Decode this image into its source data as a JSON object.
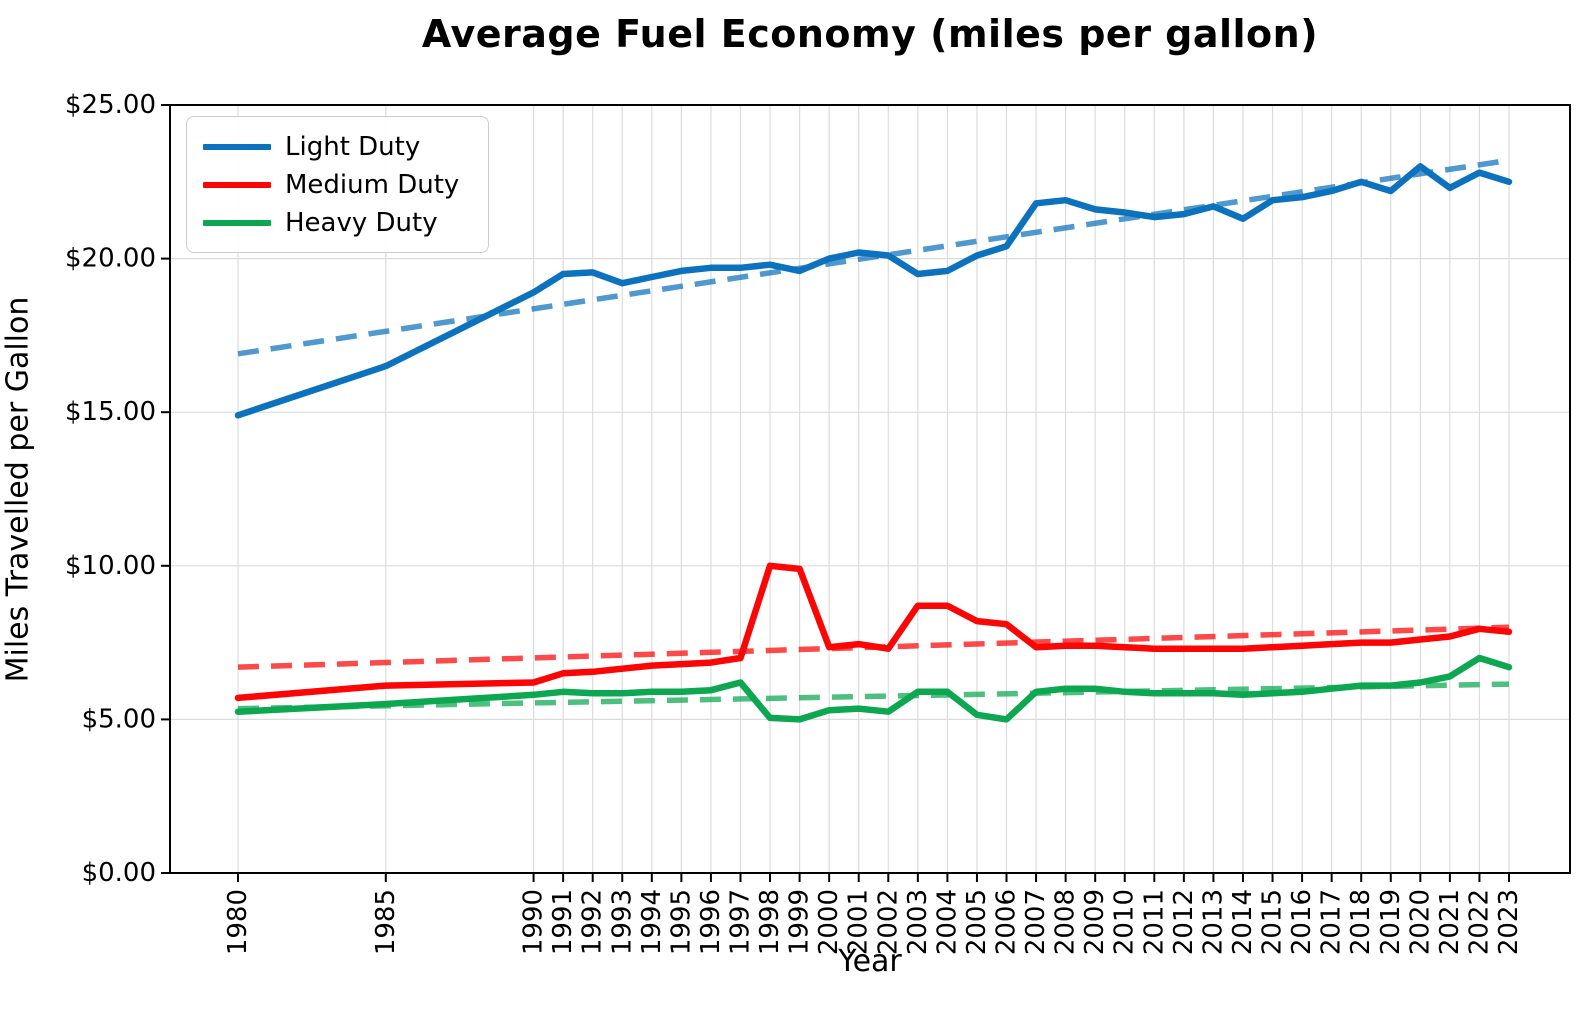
{
  "chart_data": {
    "type": "line",
    "title": "Average Fuel Economy (miles per gallon)",
    "xlabel": "Year",
    "ylabel": "Miles Travelled per Gallon",
    "x": [
      1980,
      1985,
      1990,
      1991,
      1992,
      1993,
      1994,
      1995,
      1996,
      1997,
      1998,
      1999,
      2000,
      2001,
      2002,
      2003,
      2004,
      2005,
      2006,
      2007,
      2008,
      2009,
      2010,
      2011,
      2012,
      2013,
      2014,
      2015,
      2016,
      2017,
      2018,
      2019,
      2020,
      2021,
      2022,
      2023
    ],
    "ylim": [
      0,
      25
    ],
    "y_ticks": [
      0,
      5,
      10,
      15,
      20,
      25
    ],
    "y_tick_labels": [
      "$0.00",
      "$5.00",
      "$10.00",
      "$15.00",
      "$20.00",
      "$25.00"
    ],
    "grid": true,
    "grid_color": "#dcdcdc",
    "legend_position": "upper left",
    "x_tick_rotation": 90,
    "series": [
      {
        "name": "Light Duty",
        "color": "#0c72bd",
        "values": [
          14.9,
          16.5,
          18.9,
          19.5,
          19.55,
          19.2,
          19.4,
          19.6,
          19.7,
          19.7,
          19.8,
          19.6,
          20.0,
          20.2,
          20.1,
          19.5,
          19.6,
          20.1,
          20.4,
          21.8,
          21.9,
          21.6,
          21.5,
          21.35,
          21.45,
          21.7,
          21.3,
          21.9,
          22.0,
          22.2,
          22.5,
          22.2,
          23.0,
          22.3,
          22.8,
          22.5
        ]
      },
      {
        "name": "Medium Duty",
        "color": "#fb0505",
        "values": [
          5.7,
          6.1,
          6.2,
          6.5,
          6.55,
          6.65,
          6.75,
          6.8,
          6.85,
          7.0,
          10.0,
          9.9,
          7.35,
          7.45,
          7.3,
          8.7,
          8.7,
          8.2,
          8.1,
          7.35,
          7.4,
          7.4,
          7.35,
          7.3,
          7.3,
          7.3,
          7.3,
          7.35,
          7.4,
          7.45,
          7.5,
          7.5,
          7.6,
          7.7,
          7.95,
          7.85
        ]
      },
      {
        "name": "Heavy Duty",
        "color": "#0ca750",
        "values": [
          5.25,
          5.5,
          5.8,
          5.9,
          5.85,
          5.85,
          5.9,
          5.9,
          5.95,
          6.2,
          5.05,
          5.0,
          5.3,
          5.35,
          5.25,
          5.9,
          5.9,
          5.15,
          5.0,
          5.9,
          6.0,
          6.0,
          5.9,
          5.85,
          5.85,
          5.85,
          5.8,
          5.85,
          5.9,
          6.0,
          6.1,
          6.1,
          6.2,
          6.4,
          7.0,
          6.7
        ]
      }
    ],
    "trend_lines": [
      {
        "series": "Light Duty",
        "color": "#0c72bd",
        "style": "dashed",
        "start_x": 1980,
        "end_x": 2023,
        "start_y": 16.9,
        "end_y": 23.2
      },
      {
        "series": "Medium Duty",
        "color": "#fb0505",
        "style": "dashed",
        "start_x": 1980,
        "end_x": 2023,
        "start_y": 6.7,
        "end_y": 8.0
      },
      {
        "series": "Heavy Duty",
        "color": "#0ca750",
        "style": "dashed",
        "start_x": 1980,
        "end_x": 2023,
        "start_y": 5.35,
        "end_y": 6.15
      }
    ]
  }
}
